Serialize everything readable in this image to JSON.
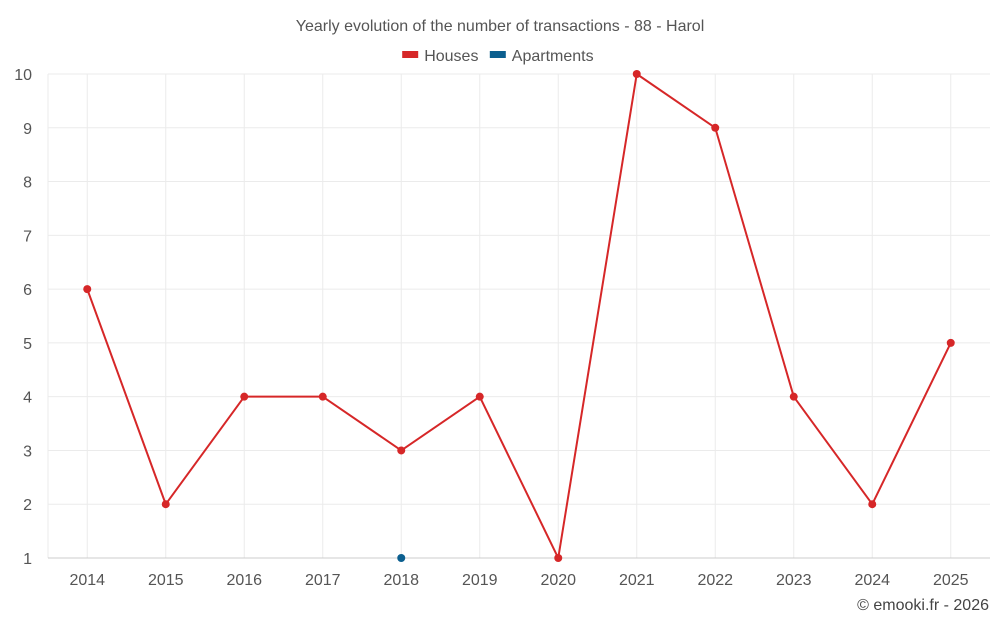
{
  "chart_data": {
    "type": "line",
    "title": "Yearly evolution of the number of transactions - 88 - Harol",
    "xlabel": "",
    "ylabel": "",
    "categories": [
      "2014",
      "2015",
      "2016",
      "2017",
      "2018",
      "2019",
      "2020",
      "2021",
      "2022",
      "2023",
      "2024",
      "2025"
    ],
    "ylim": [
      1,
      10
    ],
    "yticks": [
      1,
      2,
      3,
      4,
      5,
      6,
      7,
      8,
      9,
      10
    ],
    "grid": true,
    "legend_position": "top-center",
    "series": [
      {
        "name": "Houses",
        "color": "#d62728",
        "values": [
          6,
          2,
          4,
          4,
          3,
          4,
          1,
          10,
          9,
          4,
          2,
          5
        ]
      },
      {
        "name": "Apartments",
        "color": "#0b5f8f",
        "values": [
          null,
          null,
          null,
          null,
          1,
          null,
          null,
          null,
          null,
          null,
          null,
          null
        ]
      }
    ]
  },
  "credit": "© emooki.fr - 2026"
}
